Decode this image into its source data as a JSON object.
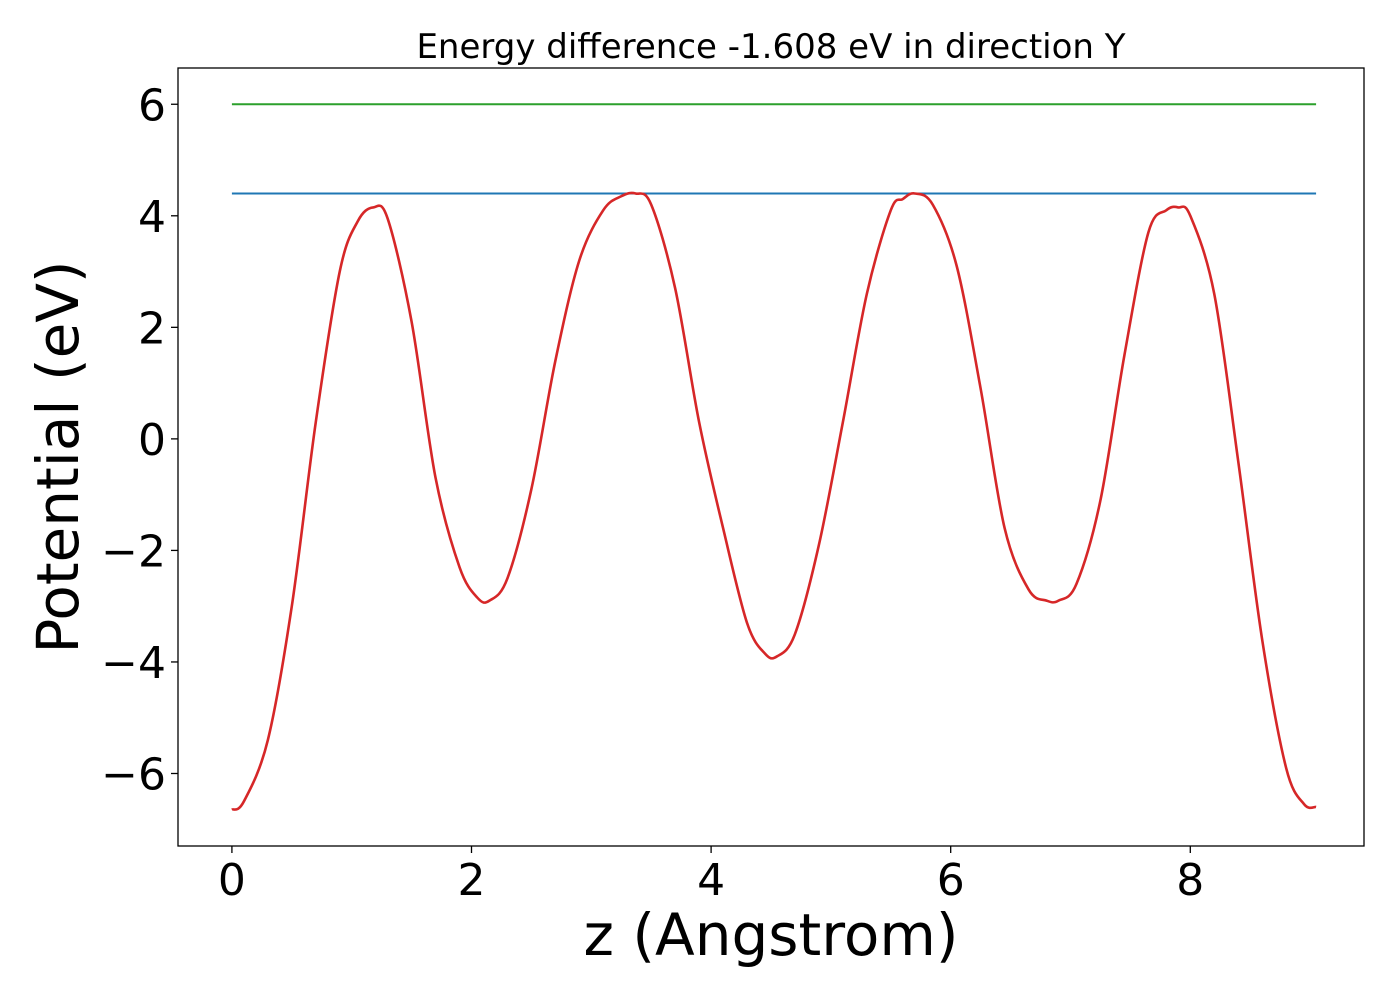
{
  "chart_data": {
    "type": "line",
    "title": "Energy difference -1.608 eV in direction Y",
    "xlabel": "z (Angstrom)",
    "ylabel": "Potential (eV)",
    "xlim": [
      -0.45,
      9.45
    ],
    "ylim": [
      -7.3,
      6.65
    ],
    "xticks": [
      0,
      2,
      4,
      6,
      8
    ],
    "yticks": [
      -6,
      -4,
      -2,
      0,
      2,
      4,
      6
    ],
    "xtick_labels": [
      "0",
      "2",
      "4",
      "6",
      "8"
    ],
    "ytick_labels": [
      "−6",
      "−4",
      "−2",
      "0",
      "2",
      "4",
      "6"
    ],
    "grid": false,
    "legend": "none",
    "series": [
      {
        "color": "#2ca02c",
        "style": "constant",
        "x": [
          0,
          9.05
        ],
        "y": [
          6.0,
          6.0
        ]
      },
      {
        "color": "#1f77b4",
        "style": "constant",
        "x": [
          0,
          9.05
        ],
        "y": [
          4.4,
          4.4
        ]
      },
      {
        "color": "#d62728",
        "style": "curve",
        "x": [
          0.0,
          0.1,
          0.3,
          0.5,
          0.7,
          0.9,
          1.05,
          1.18,
          1.3,
          1.5,
          1.7,
          1.9,
          2.05,
          2.15,
          2.3,
          2.5,
          2.7,
          2.9,
          3.1,
          3.25,
          3.37,
          3.5,
          3.7,
          3.9,
          4.1,
          4.3,
          4.45,
          4.55,
          4.7,
          4.9,
          5.1,
          5.3,
          5.5,
          5.6,
          5.7,
          5.85,
          6.05,
          6.25,
          6.45,
          6.65,
          6.8,
          6.9,
          7.05,
          7.25,
          7.45,
          7.65,
          7.8,
          7.9,
          8.0,
          8.2,
          8.4,
          8.6,
          8.8,
          8.95,
          9.05
        ],
        "y": [
          -6.65,
          -6.5,
          -5.4,
          -3.0,
          0.3,
          3.0,
          3.9,
          4.15,
          3.95,
          2.1,
          -0.7,
          -2.3,
          -2.85,
          -2.9,
          -2.5,
          -0.9,
          1.4,
          3.2,
          4.1,
          4.35,
          4.4,
          4.2,
          2.7,
          0.3,
          -1.6,
          -3.3,
          -3.85,
          -3.9,
          -3.5,
          -1.9,
          0.3,
          2.6,
          4.1,
          4.3,
          4.4,
          4.2,
          3.1,
          0.9,
          -1.6,
          -2.7,
          -2.9,
          -2.9,
          -2.6,
          -1.1,
          1.5,
          3.7,
          4.1,
          4.15,
          4.0,
          2.6,
          -0.4,
          -3.6,
          -5.9,
          -6.55,
          -6.6
        ]
      }
    ]
  }
}
